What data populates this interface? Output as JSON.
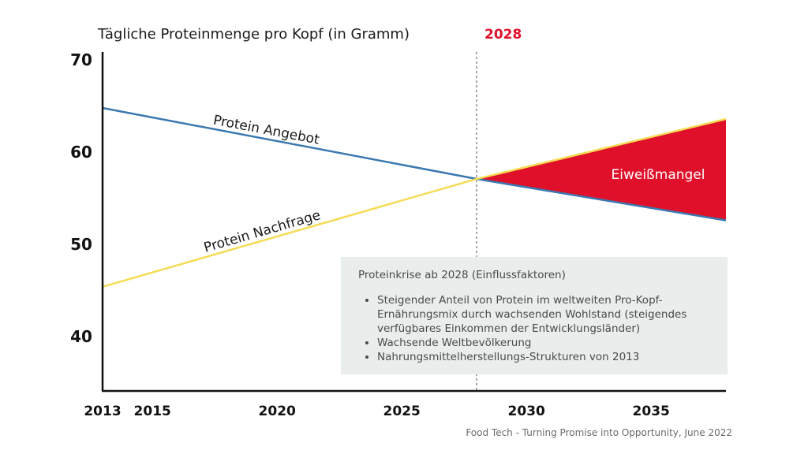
{
  "chart_data": {
    "type": "line",
    "title": "Tägliche Proteinmenge pro Kopf (in Gramm)",
    "xlim": [
      2013,
      2038
    ],
    "ylim": [
      34,
      70
    ],
    "x_ticks": [
      2013,
      2015,
      2020,
      2025,
      2030,
      2035
    ],
    "y_ticks": [
      40,
      50,
      60,
      70
    ],
    "grid": false,
    "marker_year": 2028,
    "marker_label": "2028",
    "series": [
      {
        "name": "Protein Angebot",
        "color": "#3b78b0",
        "x": [
          2013,
          2028,
          2038
        ],
        "y": [
          64.7,
          57.0,
          52.5
        ]
      },
      {
        "name": "Protein Nachfrage",
        "color": "#f5dc55",
        "x": [
          2013,
          2028,
          2038
        ],
        "y": [
          45.3,
          57.0,
          63.5
        ]
      }
    ],
    "gap_area": {
      "label": "Eiweißmangel",
      "color": "#e0102a",
      "x_from": 2028,
      "x_to": 2038
    }
  },
  "infobox": {
    "title": "Proteinkrise ab 2028 (Einflussfaktoren)",
    "bullets": [
      "Steigender Anteil von Protein im weltweiten Pro-Kopf-Ernährungsmix durch wachsenden Wohlstand (steigendes verfügbares Einkommen der Entwicklungsländer)",
      "Wachsende Weltbevölkerung",
      "Nahrungsmittelherstellungs-Strukturen von 2013"
    ]
  },
  "source": "Food Tech - Turning Promise into Opportunity, June 2022"
}
